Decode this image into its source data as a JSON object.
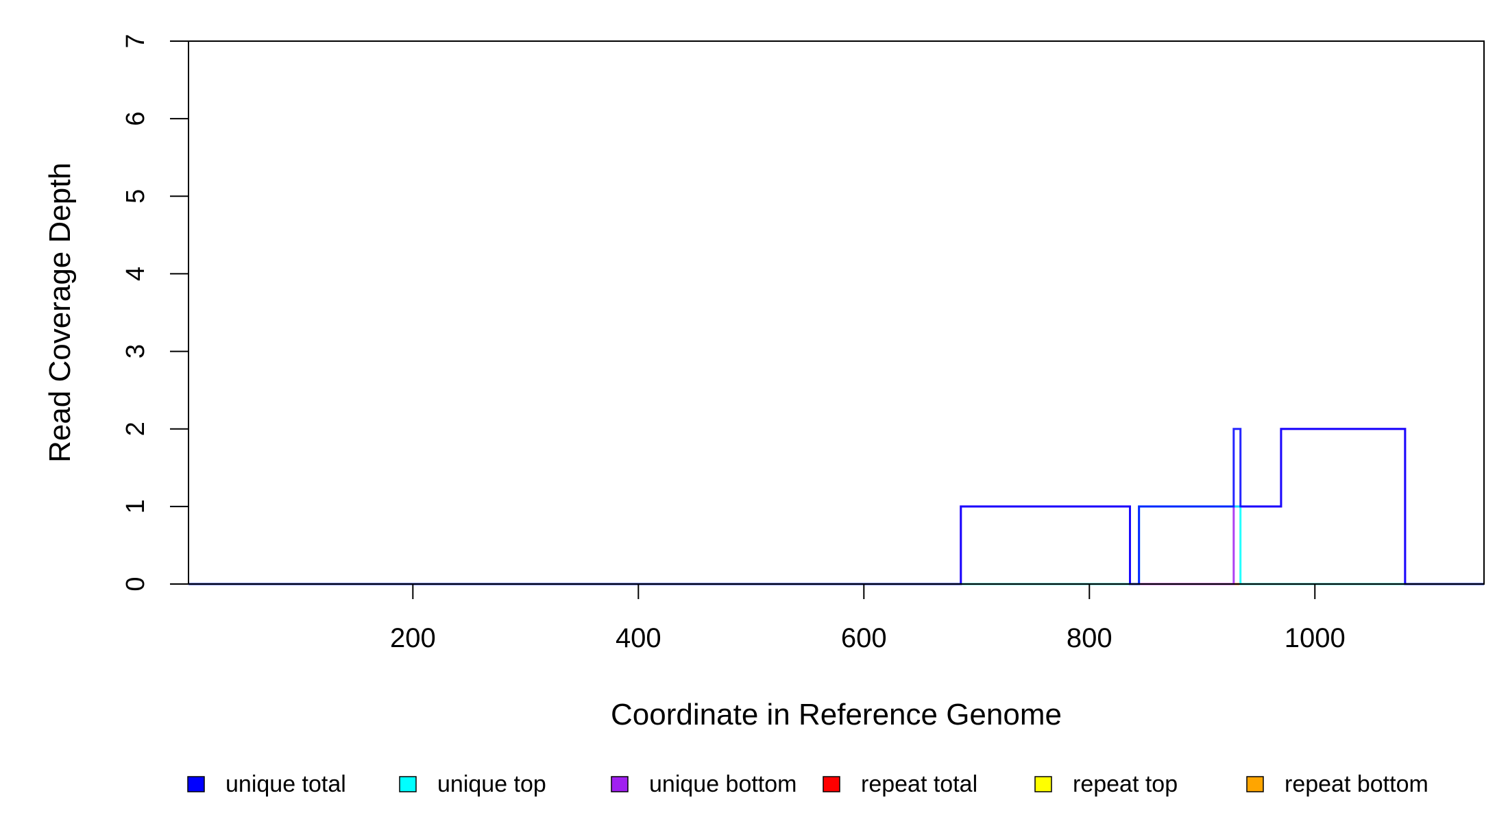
{
  "chart_data": {
    "type": "line",
    "step": true,
    "xlabel": "Coordinate in Reference Genome",
    "ylabel": "Read Coverage Depth",
    "xlim": [
      1,
      1150
    ],
    "ylim": [
      0,
      7
    ],
    "x_ticks": [
      200,
      400,
      600,
      800,
      1000
    ],
    "y_ticks": [
      0,
      1,
      2,
      3,
      4,
      5,
      6,
      7
    ],
    "legend_position": "bottom",
    "series": [
      {
        "name": "unique total",
        "color": "#0000ff",
        "points": [
          [
            1,
            0
          ],
          [
            686,
            0
          ],
          [
            686,
            1
          ],
          [
            836,
            1
          ],
          [
            836,
            0
          ],
          [
            844,
            0
          ],
          [
            844,
            1
          ],
          [
            928,
            1
          ],
          [
            928,
            2
          ],
          [
            934,
            2
          ],
          [
            934,
            1
          ],
          [
            970,
            1
          ],
          [
            970,
            2
          ],
          [
            1080,
            2
          ],
          [
            1080,
            0
          ],
          [
            1150,
            0
          ]
        ]
      },
      {
        "name": "unique top",
        "color": "#00ffff",
        "points": [
          [
            1,
            0
          ],
          [
            844,
            0
          ],
          [
            844,
            1
          ],
          [
            934,
            1
          ],
          [
            934,
            0
          ],
          [
            1150,
            0
          ]
        ]
      },
      {
        "name": "unique bottom",
        "color": "#a020f0",
        "points": [
          [
            1,
            0
          ],
          [
            686,
            0
          ],
          [
            686,
            1
          ],
          [
            836,
            1
          ],
          [
            836,
            0
          ],
          [
            928,
            0
          ],
          [
            928,
            1
          ],
          [
            970,
            1
          ],
          [
            970,
            2
          ],
          [
            1080,
            2
          ],
          [
            1080,
            0
          ],
          [
            1150,
            0
          ]
        ]
      },
      {
        "name": "repeat total",
        "color": "#ff0000",
        "points": [
          [
            1,
            0
          ],
          [
            1150,
            0
          ]
        ]
      },
      {
        "name": "repeat top",
        "color": "#ffff00",
        "points": [
          [
            1,
            0
          ],
          [
            1150,
            0
          ]
        ]
      },
      {
        "name": "repeat bottom",
        "color": "#ffa500",
        "points": [
          [
            1,
            0
          ],
          [
            1150,
            0
          ]
        ]
      }
    ]
  }
}
